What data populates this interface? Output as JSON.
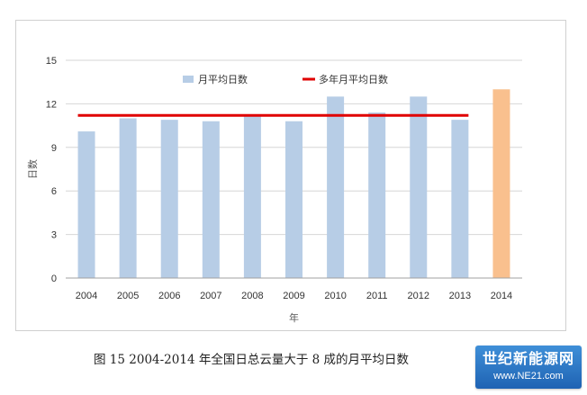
{
  "chart_data": {
    "type": "bar",
    "title": "",
    "xlabel": "年",
    "ylabel": "日数",
    "ylim": [
      0,
      15
    ],
    "yticks": [
      "0",
      "3",
      "6",
      "9",
      "12",
      "15"
    ],
    "categories": [
      "2004",
      "2005",
      "2006",
      "2007",
      "2008",
      "2009",
      "2010",
      "2011",
      "2012",
      "2013",
      "2014"
    ],
    "series": [
      {
        "name": "月平均日数",
        "values": [
          10.1,
          11.0,
          10.9,
          10.8,
          11.2,
          10.8,
          12.5,
          11.4,
          12.5,
          10.9,
          13.0
        ],
        "color": "#b7cde6",
        "highlight_index": 10,
        "highlight_color": "#f9c08e"
      },
      {
        "name": "多年月平均日数",
        "type": "line",
        "value": 11.2,
        "color": "#e00000"
      }
    ],
    "grid": true,
    "legend": "top"
  },
  "caption": "图 15   2004-2014 年全国日总云量大于 8 成的月平均日数",
  "watermark": {
    "top": "世纪新能源网",
    "bottom": "www.NE21.com"
  }
}
